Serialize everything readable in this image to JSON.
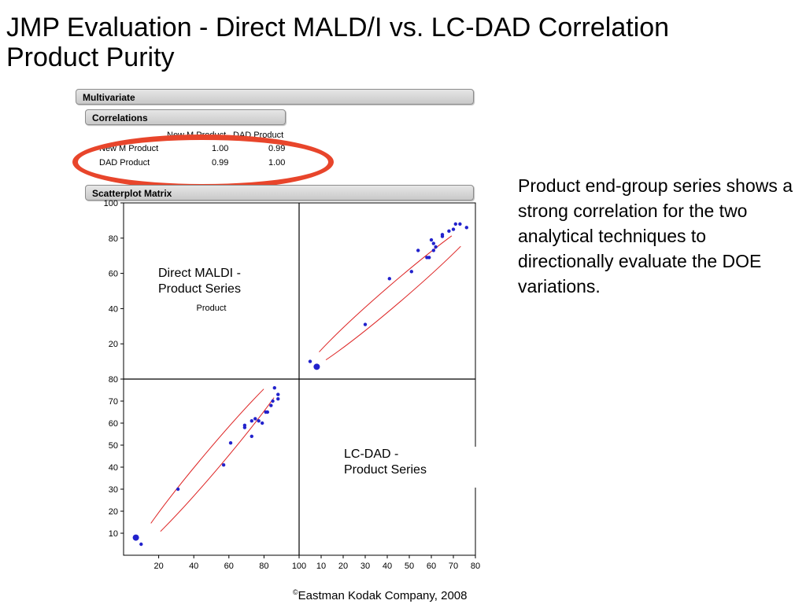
{
  "slide": {
    "title_line1": "JMP Evaluation - Direct MALD/I vs. LC-DAD Correlation",
    "title_line2": "Product Purity",
    "side_text": "Product end-group series shows a strong correlation for the two analytical techniques to directionally evaluate the DOE variations.",
    "callout_maldi_line1": "Direct MALDI -",
    "callout_maldi_line2": "Product Series",
    "callout_lcdad_line1": "LC-DAD -",
    "callout_lcdad_line2": "Product Series",
    "footer_symbol": "©",
    "footer_text": "Eastman Kodak Company, 2008"
  },
  "panels": {
    "multivariate": "Multivariate",
    "correlations": "Correlations",
    "scatterplot_matrix": "Scatterplot Matrix"
  },
  "correlation_table": {
    "col_headers": [
      "New M Product",
      "DAD Product"
    ],
    "rows": [
      {
        "label": "New M Product",
        "values": [
          "1.00",
          "0.99"
        ]
      },
      {
        "label": "DAD Product",
        "values": [
          "0.99",
          "1.00"
        ]
      }
    ]
  },
  "colors": {
    "point": "#2222cc",
    "ellipse": "#e8452b",
    "density_ellipse": "#dd2222"
  },
  "chart_data": {
    "type": "scatter",
    "title": "",
    "diagonal_label": "Product",
    "variables": [
      "New M Product",
      "DAD Product"
    ],
    "new_m_axis": {
      "range": [
        0,
        100
      ],
      "ticks": [
        20,
        40,
        60,
        80,
        100
      ],
      "tick_labels": [
        "20",
        "40",
        "60",
        "80",
        "100"
      ]
    },
    "dad_axis": {
      "range": [
        0,
        80
      ],
      "ticks": [
        10,
        20,
        30,
        40,
        50,
        60,
        70,
        80
      ],
      "tick_labels": [
        "10",
        "20",
        "30",
        "40",
        "50",
        "60",
        "70",
        "80"
      ]
    },
    "points": [
      {
        "m": 10,
        "dad": 5
      },
      {
        "m": 7,
        "dad": 8
      },
      {
        "m": 31,
        "dad": 30
      },
      {
        "m": 57,
        "dad": 41
      },
      {
        "m": 61,
        "dad": 51
      },
      {
        "m": 69,
        "dad": 58
      },
      {
        "m": 69,
        "dad": 59
      },
      {
        "m": 73,
        "dad": 54
      },
      {
        "m": 73,
        "dad": 61
      },
      {
        "m": 75,
        "dad": 62
      },
      {
        "m": 77,
        "dad": 61
      },
      {
        "m": 79,
        "dad": 60
      },
      {
        "m": 81,
        "dad": 65
      },
      {
        "m": 82,
        "dad": 65
      },
      {
        "m": 84,
        "dad": 68
      },
      {
        "m": 85,
        "dad": 70
      },
      {
        "m": 86,
        "dad": 76
      },
      {
        "m": 88,
        "dad": 71
      },
      {
        "m": 88,
        "dad": 73
      }
    ]
  }
}
